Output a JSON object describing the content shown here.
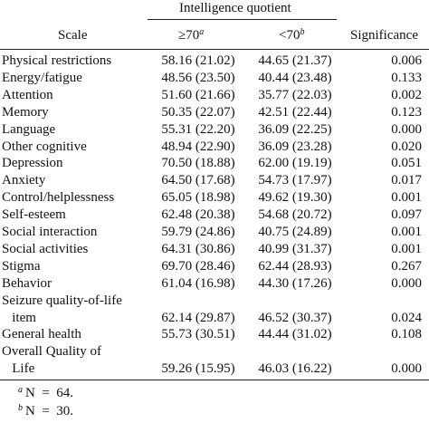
{
  "header": {
    "group_label": "Intelligence quotient",
    "scale_label": "Scale",
    "col1_label": "≥70",
    "col1_sup": "a",
    "col2_label": "<70",
    "col2_sup": "b",
    "significance_label": "Significance"
  },
  "rows": [
    {
      "scale": "Physical restrictions",
      "iq_ge70": "58.16 (21.02)",
      "iq_lt70": "44.65 (21.37)",
      "significance": "0.006"
    },
    {
      "scale": "Energy/fatigue",
      "iq_ge70": "48.56 (23.50)",
      "iq_lt70": "40.44 (23.48)",
      "significance": "0.133"
    },
    {
      "scale": "Attention",
      "iq_ge70": "51.60 (21.66)",
      "iq_lt70": "35.77 (22.03)",
      "significance": "0.002"
    },
    {
      "scale": "Memory",
      "iq_ge70": "50.35 (22.07)",
      "iq_lt70": "42.51 (22.44)",
      "significance": "0.123"
    },
    {
      "scale": "Language",
      "iq_ge70": "55.31 (22.20)",
      "iq_lt70": "36.09 (22.25)",
      "significance": "0.000"
    },
    {
      "scale": "Other cognitive",
      "iq_ge70": "48.94 (22.90)",
      "iq_lt70": "36.09 (23.28)",
      "significance": "0.020"
    },
    {
      "scale": "Depression",
      "iq_ge70": "70.50 (18.88)",
      "iq_lt70": "62.00 (19.19)",
      "significance": "0.051"
    },
    {
      "scale": "Anxiety",
      "iq_ge70": "64.50 (17.68)",
      "iq_lt70": "54.73 (17.97)",
      "significance": "0.017"
    },
    {
      "scale": "Control/helplessness",
      "iq_ge70": "65.05 (18.98)",
      "iq_lt70": "49.62 (19.30)",
      "significance": "0.001"
    },
    {
      "scale": "Self-esteem",
      "iq_ge70": "62.48 (20.38)",
      "iq_lt70": "54.68 (20.72)",
      "significance": "0.097"
    },
    {
      "scale": "Social interaction",
      "iq_ge70": "59.79 (24.86)",
      "iq_lt70": "40.75 (24.89)",
      "significance": "0.001"
    },
    {
      "scale": "Social activities",
      "iq_ge70": "64.31 (30.86)",
      "iq_lt70": "40.99 (31.37)",
      "significance": "0.001"
    },
    {
      "scale": "Stigma",
      "iq_ge70": "69.70 (28.46)",
      "iq_lt70": "62.44 (28.93)",
      "significance": "0.267"
    },
    {
      "scale": "Behavior",
      "iq_ge70": "61.04 (16.98)",
      "iq_lt70": "44.30 (17.26)",
      "significance": "0.000"
    },
    {
      "scale": "Seizure quality-of-life",
      "iq_ge70": "",
      "iq_lt70": "",
      "significance": ""
    },
    {
      "scale": "   item",
      "iq_ge70": "62.14 (29.87)",
      "iq_lt70": "46.52 (30.37)",
      "significance": "0.024"
    },
    {
      "scale": "General health",
      "iq_ge70": "55.73 (30.51)",
      "iq_lt70": "44.44 (31.02)",
      "significance": "0.108"
    },
    {
      "scale": "Overall Quality of",
      "iq_ge70": "",
      "iq_lt70": "",
      "significance": ""
    },
    {
      "scale": "   Life",
      "iq_ge70": "59.26 (15.95)",
      "iq_lt70": "46.03 (16.22)",
      "significance": "0.000"
    }
  ],
  "footnotes": [
    {
      "mark": "a",
      "text": "N  =  64."
    },
    {
      "mark": "b",
      "text": "N  =  30."
    }
  ]
}
